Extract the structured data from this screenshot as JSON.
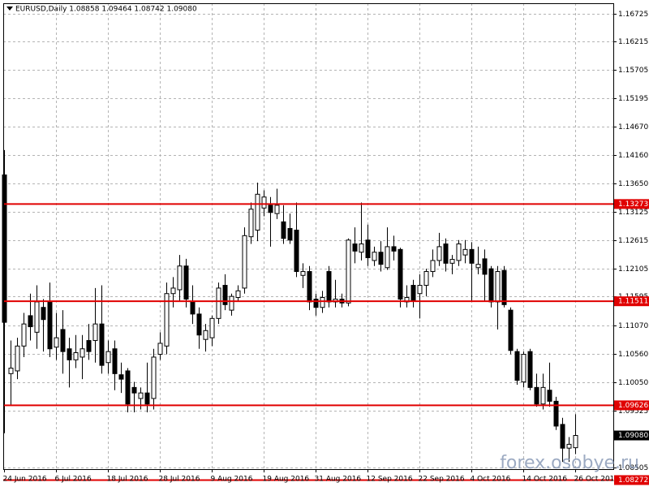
{
  "chart_data": {
    "type": "candlestick",
    "title": "EURUSD,Daily  1.08858 1.09464 1.08742 1.09080",
    "watermark": "forex.osobye.ru",
    "categories": [
      "24 Jun 2016",
      null,
      null,
      null,
      null,
      null,
      null,
      null,
      "6 Jul 2016",
      null,
      null,
      null,
      null,
      null,
      null,
      null,
      "18 Jul 2016",
      null,
      null,
      null,
      null,
      null,
      null,
      null,
      "28 Jul 2016",
      null,
      null,
      null,
      null,
      null,
      null,
      null,
      "9 Aug 2016",
      null,
      null,
      null,
      null,
      null,
      null,
      null,
      "19 Aug 2016",
      null,
      null,
      null,
      null,
      null,
      null,
      null,
      "31 Aug 2016",
      null,
      null,
      null,
      null,
      null,
      null,
      null,
      "12 Sep 2016",
      null,
      null,
      null,
      null,
      null,
      null,
      null,
      "22 Sep 2016",
      null,
      null,
      null,
      null,
      null,
      null,
      null,
      "4 Oct 2016",
      null,
      null,
      null,
      null,
      null,
      null,
      null,
      "14 Oct 2016",
      null,
      null,
      null,
      null,
      null,
      null,
      null,
      "26 Oct 2016"
    ],
    "open": [
      1.138,
      1.102,
      1.1025,
      1.107,
      1.1125,
      1.1095,
      1.114,
      1.115,
      1.1068,
      1.11,
      1.1065,
      1.1045,
      1.105,
      1.108,
      1.108,
      1.111,
      1.104,
      1.1065,
      1.1018,
      1.1025,
      1.0995,
      1.0975,
      1.0985,
      1.0975,
      1.1055,
      1.107,
      1.1165,
      1.1172,
      1.1215,
      1.115,
      1.1128,
      1.1082,
      1.1085,
      1.112,
      1.118,
      1.1135,
      1.1158,
      1.1175,
      1.1268,
      1.128,
      1.132,
      1.1325,
      1.131,
      1.1295,
      1.1283,
      1.128,
      1.1198,
      1.1205,
      1.1155,
      1.114,
      1.1205,
      1.115,
      1.1155,
      1.1148,
      1.1255,
      1.124,
      1.1262,
      1.1225,
      1.124,
      1.1212,
      1.125,
      1.1245,
      1.115,
      1.118,
      1.1165,
      1.118,
      1.1205,
      1.1225,
      1.1255,
      1.122,
      1.1225,
      1.1235,
      1.1245,
      1.1212,
      1.1228,
      1.121,
      1.115,
      1.1207,
      1.1135,
      1.106,
      1.1005,
      1.106,
      1.0995,
      1.0965,
      1.099,
      1.097,
      1.0928,
      1.0885,
      1.08858
    ],
    "high": [
      1.1425,
      1.108,
      1.1085,
      1.113,
      1.1165,
      1.118,
      1.1155,
      1.1185,
      1.113,
      1.1135,
      1.1085,
      1.109,
      1.109,
      1.111,
      1.1175,
      1.118,
      1.108,
      1.108,
      1.104,
      1.103,
      1.1005,
      1.0995,
      1.104,
      1.1065,
      1.1095,
      1.1185,
      1.1195,
      1.1235,
      1.1228,
      1.118,
      1.114,
      1.111,
      1.1125,
      1.1185,
      1.12,
      1.1165,
      1.118,
      1.1285,
      1.133,
      1.1366,
      1.1352,
      1.134,
      1.1355,
      1.1325,
      1.131,
      1.133,
      1.122,
      1.1215,
      1.1165,
      1.117,
      1.1215,
      1.119,
      1.1165,
      1.1265,
      1.1285,
      1.133,
      1.129,
      1.125,
      1.126,
      1.1285,
      1.127,
      1.1248,
      1.118,
      1.119,
      1.12,
      1.121,
      1.1245,
      1.1275,
      1.1265,
      1.1235,
      1.1262,
      1.1262,
      1.1258,
      1.125,
      1.1245,
      1.1215,
      1.1215,
      1.1215,
      1.114,
      1.1065,
      1.106,
      1.1065,
      1.102,
      1.102,
      1.104,
      1.0978,
      1.094,
      1.0905,
      1.09464
    ],
    "low": [
      1.0912,
      1.0962,
      1.101,
      1.105,
      1.108,
      1.1065,
      1.106,
      1.105,
      1.1045,
      1.102,
      1.0995,
      1.103,
      1.101,
      1.1045,
      1.104,
      1.102,
      1.102,
      1.099,
      1.0985,
      1.095,
      1.095,
      1.0955,
      1.095,
      1.0955,
      1.1045,
      1.1055,
      1.114,
      1.115,
      1.114,
      1.111,
      1.1065,
      1.106,
      1.107,
      1.111,
      1.1135,
      1.1125,
      1.115,
      1.1165,
      1.1255,
      1.126,
      1.1305,
      1.125,
      1.13,
      1.1255,
      1.1255,
      1.1195,
      1.1175,
      1.1135,
      1.1125,
      1.113,
      1.114,
      1.114,
      1.114,
      1.1142,
      1.122,
      1.1225,
      1.1215,
      1.1215,
      1.1205,
      1.1208,
      1.1225,
      1.114,
      1.114,
      1.114,
      1.112,
      1.116,
      1.1195,
      1.1215,
      1.1205,
      1.12,
      1.1215,
      1.122,
      1.115,
      1.12,
      1.115,
      1.114,
      1.11,
      1.114,
      1.1055,
      1.1,
      1.0995,
      1.099,
      1.096,
      1.0955,
      1.096,
      1.0918,
      1.086,
      1.086,
      1.08742
    ],
    "close": [
      1.1113,
      1.103,
      1.107,
      1.111,
      1.1105,
      1.115,
      1.1118,
      1.1065,
      1.1085,
      1.106,
      1.1045,
      1.1058,
      1.1065,
      1.106,
      1.111,
      1.1035,
      1.106,
      1.102,
      1.101,
      1.0965,
      1.0985,
      1.0985,
      1.0965,
      1.105,
      1.1075,
      1.1165,
      1.1175,
      1.1215,
      1.1155,
      1.1128,
      1.109,
      1.1098,
      1.112,
      1.1175,
      1.1145,
      1.116,
      1.117,
      1.127,
      1.1318,
      1.1345,
      1.134,
      1.1312,
      1.1325,
      1.1265,
      1.1262,
      1.1205,
      1.1205,
      1.115,
      1.114,
      1.1158,
      1.115,
      1.1155,
      1.1148,
      1.1262,
      1.1242,
      1.1255,
      1.123,
      1.124,
      1.1218,
      1.125,
      1.1242,
      1.1155,
      1.1158,
      1.1152,
      1.118,
      1.1205,
      1.1225,
      1.125,
      1.122,
      1.1227,
      1.1255,
      1.1245,
      1.122,
      1.1218,
      1.12,
      1.115,
      1.1205,
      1.1145,
      1.1062,
      1.1008,
      1.1055,
      1.0995,
      1.0965,
      1.0995,
      1.097,
      1.0925,
      1.0885,
      1.0892,
      1.0908
    ],
    "up_color": "#ffffff",
    "down_color": "#000000",
    "ylim": [
      1.0847,
      1.1691
    ],
    "yticks": [
      1.16725,
      1.16215,
      1.15705,
      1.15195,
      {
        "value": 1.1467,
        "label": "1.14670"
      },
      {
        "value": 1.1416,
        "label": "1.14160"
      },
      {
        "value": 1.1365,
        "label": "1.13650"
      },
      1.13125,
      1.12615,
      1.12105,
      1.11595,
      {
        "value": 1.1107,
        "label": "1.11070"
      },
      {
        "value": 1.1056,
        "label": "1.10560"
      },
      {
        "value": 1.1005,
        "label": "1.10050"
      },
      1.09525,
      1.08505
    ],
    "grid": true,
    "levels": [
      1.13273,
      1.11511,
      1.09626,
      1.08272
    ],
    "level_color": "#e00000",
    "last_price": {
      "value": 1.0908,
      "label": "1.09080"
    }
  }
}
